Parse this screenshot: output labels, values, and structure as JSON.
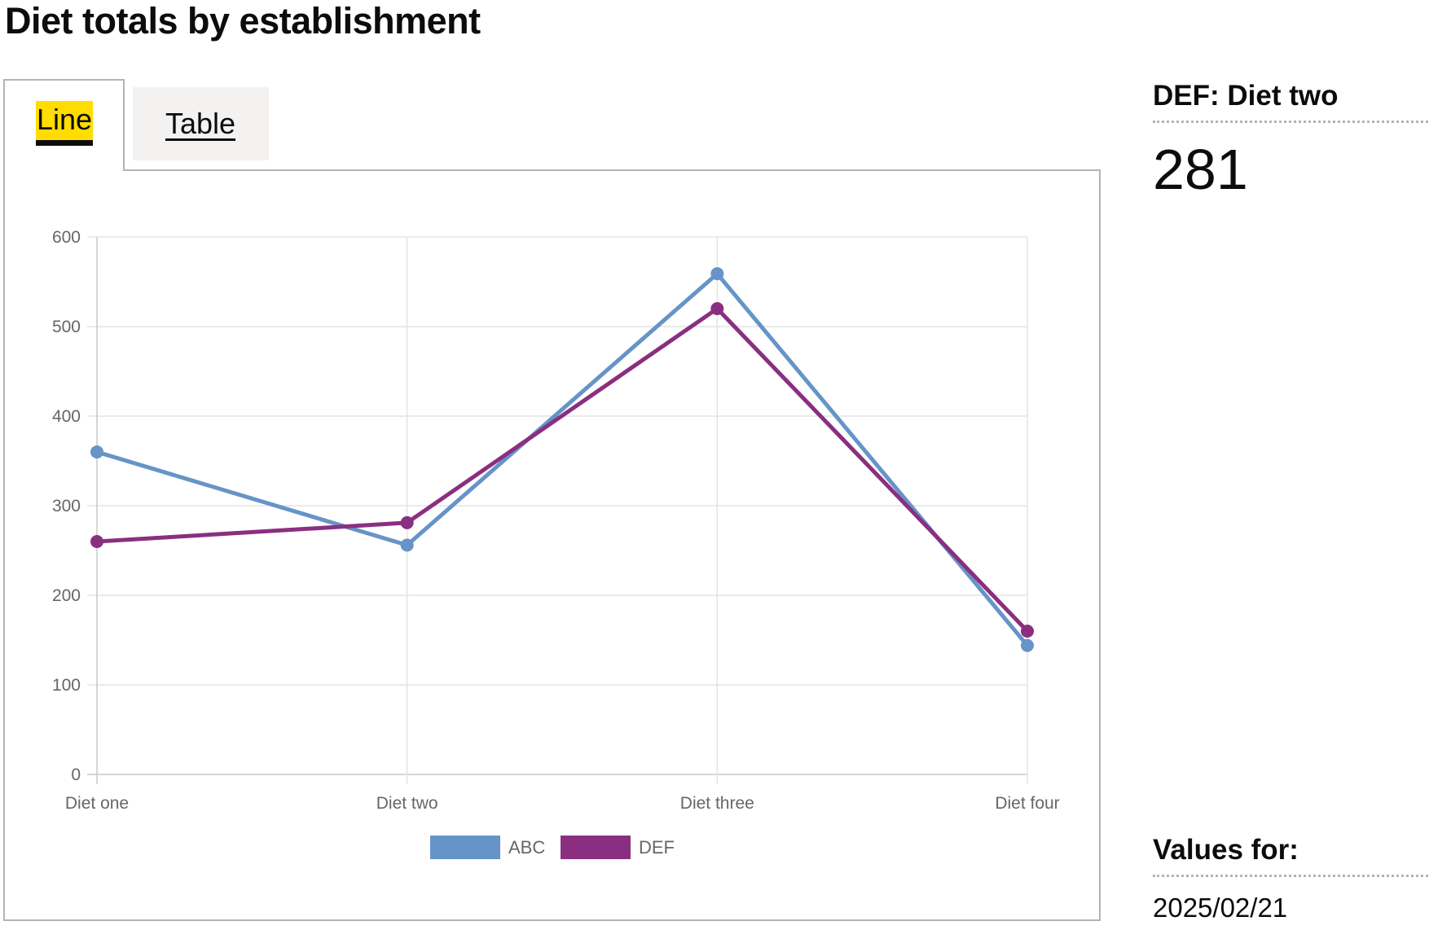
{
  "title": "Diet totals by establishment",
  "tabs": [
    {
      "label": "Line",
      "selected": true
    },
    {
      "label": "Table",
      "selected": false
    }
  ],
  "tooltip_panel": {
    "heading": "DEF: Diet two",
    "value": "281",
    "values_for_label": "Values for:",
    "date": "2025/02/21"
  },
  "chart_data": {
    "type": "line",
    "title": "",
    "xlabel": "",
    "ylabel": "",
    "categories": [
      "Diet one",
      "Diet two",
      "Diet three",
      "Diet four"
    ],
    "ylim": [
      0,
      600
    ],
    "yticks": [
      0,
      100,
      200,
      300,
      400,
      500,
      600
    ],
    "grid": true,
    "legend": "bottom",
    "series": [
      {
        "name": "ABC",
        "color": "#6694c8",
        "values": [
          360,
          256,
          559,
          144
        ]
      },
      {
        "name": "DEF",
        "color": "#8a2f80",
        "values": [
          260,
          281,
          520,
          160
        ]
      }
    ]
  }
}
